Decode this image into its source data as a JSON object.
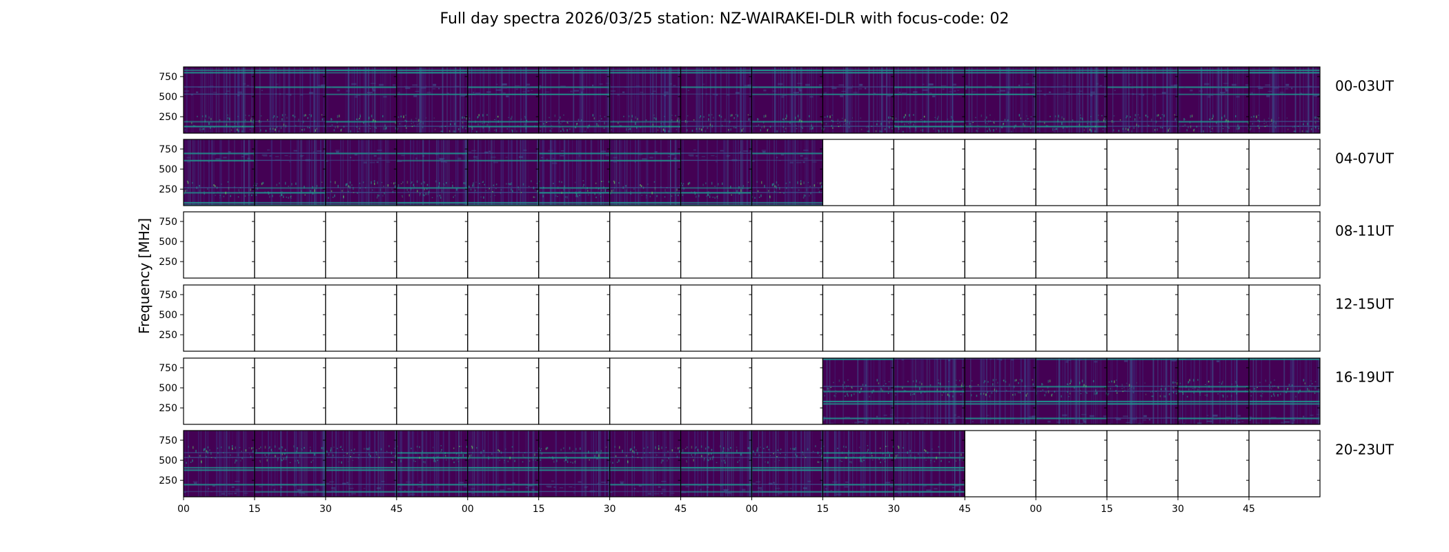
{
  "chart_data": {
    "type": "heatmap",
    "title": "Full day spectra 2026/03/25 station: NZ-WAIRAKEI-DLR with focus-code: 02",
    "ylabel": "Frequency [MHz]",
    "xlabel": "",
    "y_ticks": [
      250,
      500,
      750
    ],
    "ylim": [
      45,
      870
    ],
    "x_tick_labels": [
      "00",
      "15",
      "30",
      "45",
      "00",
      "15",
      "30",
      "45",
      "00",
      "15",
      "30",
      "45",
      "00",
      "15",
      "30",
      "45"
    ],
    "panels_per_row": 16,
    "panel_minutes": 15,
    "colormap": "viridis",
    "rows": [
      {
        "label": "00-03UT",
        "filled": [
          1,
          1,
          1,
          1,
          1,
          1,
          1,
          1,
          1,
          1,
          1,
          1,
          1,
          1,
          1,
          1
        ]
      },
      {
        "label": "04-07UT",
        "filled": [
          1,
          1,
          1,
          1,
          1,
          1,
          1,
          1,
          1,
          0,
          0,
          0,
          0,
          0,
          0,
          0
        ]
      },
      {
        "label": "08-11UT",
        "filled": [
          0,
          0,
          0,
          0,
          0,
          0,
          0,
          0,
          0,
          0,
          0,
          0,
          0,
          0,
          0,
          0
        ]
      },
      {
        "label": "12-15UT",
        "filled": [
          0,
          0,
          0,
          0,
          0,
          0,
          0,
          0,
          0,
          0,
          0,
          0,
          0,
          0,
          0,
          0
        ]
      },
      {
        "label": "16-19UT",
        "filled": [
          0,
          0,
          0,
          0,
          0,
          0,
          0,
          0,
          0,
          1,
          1,
          1,
          1,
          1,
          1,
          1
        ]
      },
      {
        "label": "20-23UT",
        "filled": [
          1,
          1,
          1,
          1,
          1,
          1,
          1,
          1,
          1,
          1,
          1,
          0,
          0,
          0,
          0,
          0
        ]
      }
    ],
    "bright_band_mhz": [
      820,
      790,
      610,
      520,
      180,
      120
    ]
  },
  "colors": {
    "background": "#440154",
    "mid": "#3b528b",
    "teal": "#21918c",
    "bright": "#5ec962",
    "frame": "#000000"
  }
}
